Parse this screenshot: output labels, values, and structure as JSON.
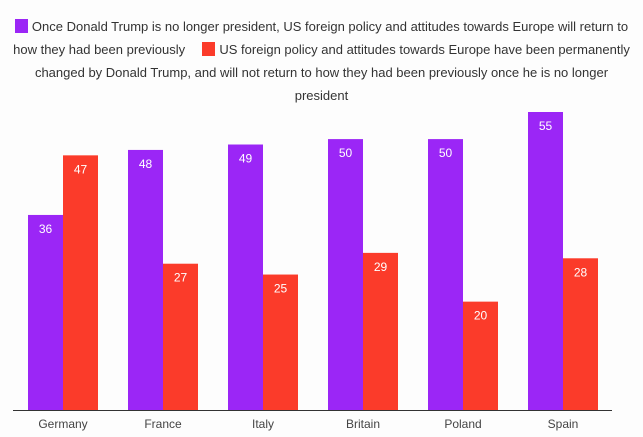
{
  "chart_data": {
    "type": "bar",
    "title": "",
    "xlabel": "",
    "ylabel": "",
    "ylim": [
      0,
      55
    ],
    "grid": false,
    "legend_position": "top",
    "categories": [
      "Germany",
      "France",
      "Italy",
      "Britain",
      "Poland",
      "Spain"
    ],
    "series": [
      {
        "name": "Once Donald Trump is no longer president, US foreign policy and attitudes towards Europe will return to how they had been previously",
        "color": "#9b26f6",
        "values": [
          36,
          48,
          49,
          50,
          50,
          55
        ]
      },
      {
        "name": "US foreign policy and attitudes towards Europe have been permanently changed by Donald Trump, and will not return to how they had been previously once he is no longer president",
        "color": "#fb3b2a",
        "values": [
          47,
          27,
          25,
          29,
          20,
          28
        ]
      }
    ]
  }
}
